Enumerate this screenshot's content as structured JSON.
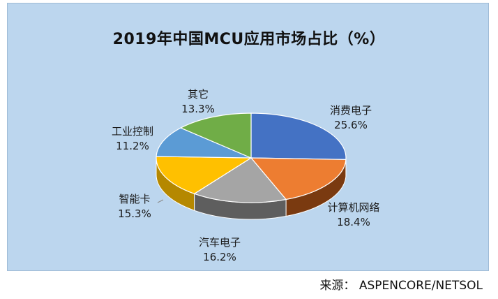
{
  "chart_data": {
    "type": "pie",
    "title": "2019年中国MCU应用市场占比（%）",
    "slices": [
      {
        "label": "消费电子",
        "value": 25.6,
        "value_label": "25.6%",
        "color": "#4472c4",
        "side": "#2a4d8f"
      },
      {
        "label": "计算机网络",
        "value": 18.4,
        "value_label": "18.4%",
        "color": "#ed7d31",
        "side": "#7a3a10"
      },
      {
        "label": "汽车电子",
        "value": 16.2,
        "value_label": "16.2%",
        "color": "#a5a5a5",
        "side": "#5e5e5e"
      },
      {
        "label": "智能卡",
        "value": 15.3,
        "value_label": "15.3%",
        "color": "#ffc000",
        "side": "#b58800"
      },
      {
        "label": "工业控制",
        "value": 11.2,
        "value_label": "11.2%",
        "color": "#5b9bd5",
        "side": "#3a6d9c"
      },
      {
        "label": "其它",
        "value": 13.3,
        "value_label": "13.3%",
        "color": "#70ad47",
        "side": "#4a7a2b"
      }
    ]
  },
  "source": "来源： ASPENCORE/NETSOL"
}
